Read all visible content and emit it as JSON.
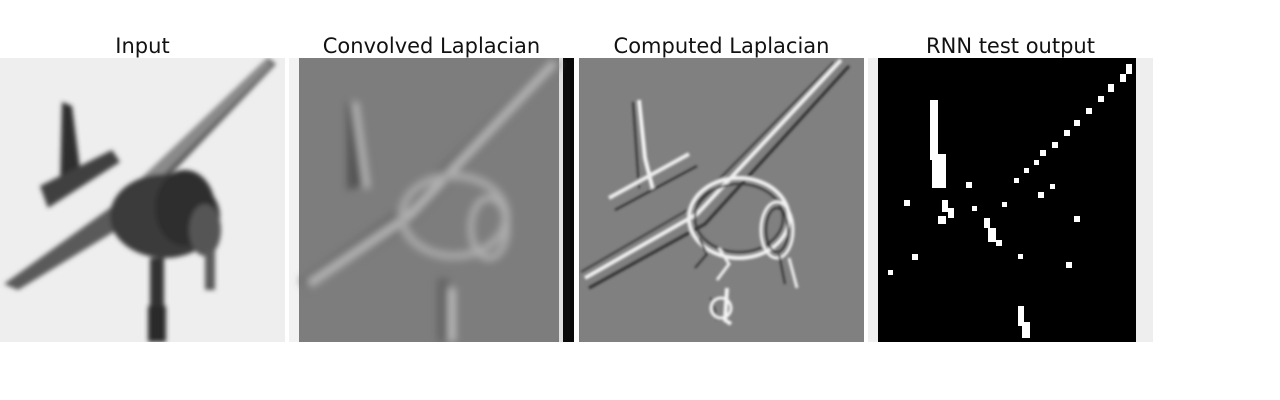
{
  "figure": {
    "panels": [
      {
        "title": "Input"
      },
      {
        "title": "Convolved Laplacian"
      },
      {
        "title": "Computed Laplacian"
      },
      {
        "title": "RNN test output"
      }
    ]
  }
}
